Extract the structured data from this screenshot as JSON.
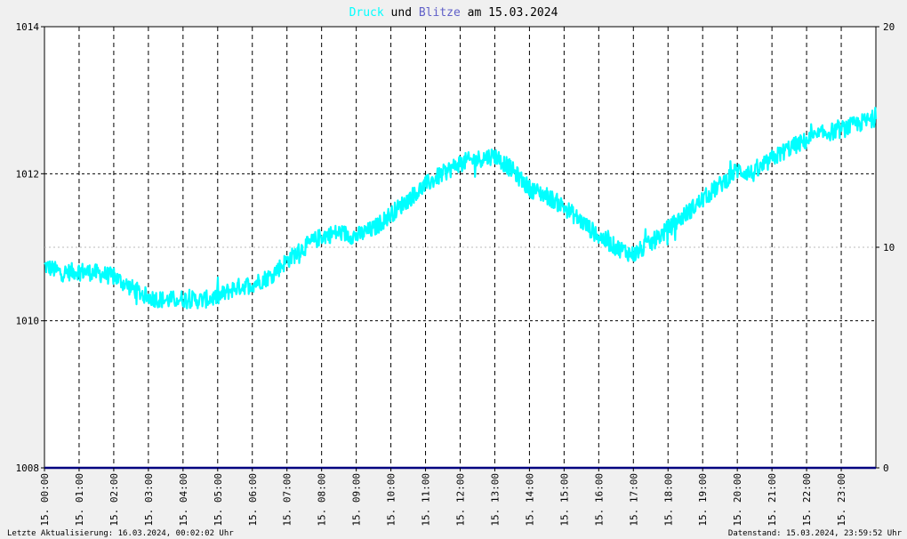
{
  "colors": {
    "pressure": "#00ffff",
    "lightning": "#6060c8",
    "title": "#000000",
    "background": "#f0f0f0",
    "plot_background": "#ffffff",
    "baseline": "#000080"
  },
  "title": {
    "word1": "Druck",
    "word2": " und ",
    "word3": "Blitze",
    "word4": " am 15.03.2024"
  },
  "footer": {
    "left": "Letzte Aktualisierung: 16.03.2024, 00:02:02 Uhr",
    "right": "Datenstand: 15.03.2024, 23:59:52 Uhr"
  },
  "chart_data": {
    "type": "line",
    "title": "Druck und Blitze am 15.03.2024",
    "x_tick_labels": [
      "15. 00:00",
      "15. 01:00",
      "15. 02:00",
      "15. 03:00",
      "15. 04:00",
      "15. 05:00",
      "15. 06:00",
      "15. 07:00",
      "15. 08:00",
      "15. 09:00",
      "15. 10:00",
      "15. 11:00",
      "15. 12:00",
      "15. 13:00",
      "15. 14:00",
      "15. 15:00",
      "15. 16:00",
      "15. 17:00",
      "15. 18:00",
      "15. 19:00",
      "15. 20:00",
      "15. 21:00",
      "15. 22:00",
      "15. 23:00"
    ],
    "x_range_hours": [
      0,
      24
    ],
    "y_left": {
      "ticks": [
        "1008",
        "1010",
        "1012",
        "1014"
      ],
      "ylim": [
        1008,
        1014
      ]
    },
    "y_right": {
      "ticks": [
        "0",
        "10",
        "20"
      ],
      "ylim": [
        0,
        20
      ]
    },
    "grid": true,
    "series": [
      {
        "name": "Druck",
        "axis": "left",
        "x_hours": [
          0,
          0.5,
          1,
          1.5,
          2,
          2.5,
          3,
          3.5,
          4,
          4.5,
          5,
          5.5,
          6,
          6.5,
          7,
          7.5,
          8,
          8.5,
          9,
          9.5,
          10,
          10.5,
          11,
          11.5,
          12,
          12.5,
          13,
          13.5,
          14,
          14.5,
          15,
          15.5,
          16,
          16.5,
          17,
          17.5,
          18,
          18.5,
          19,
          19.5,
          20,
          20.5,
          21,
          21.5,
          22,
          22.5,
          23,
          23.5
        ],
        "values": [
          1010.75,
          1010.65,
          1010.68,
          1010.65,
          1010.6,
          1010.45,
          1010.32,
          1010.28,
          1010.3,
          1010.28,
          1010.32,
          1010.45,
          1010.5,
          1010.6,
          1010.82,
          1011.0,
          1011.15,
          1011.2,
          1011.15,
          1011.25,
          1011.45,
          1011.65,
          1011.85,
          1012.0,
          1012.15,
          1012.2,
          1012.25,
          1012.05,
          1011.8,
          1011.7,
          1011.55,
          1011.35,
          1011.15,
          1011.0,
          1010.9,
          1011.05,
          1011.25,
          1011.45,
          1011.65,
          1011.85,
          1012.05,
          1012.0,
          1012.2,
          1012.35,
          1012.45,
          1012.55,
          1012.6,
          1012.68
        ],
        "noise_amplitude": 0.12
      },
      {
        "name": "Blitze",
        "axis": "right",
        "x_hours": [
          0,
          24
        ],
        "values": [
          0,
          0
        ]
      }
    ]
  }
}
